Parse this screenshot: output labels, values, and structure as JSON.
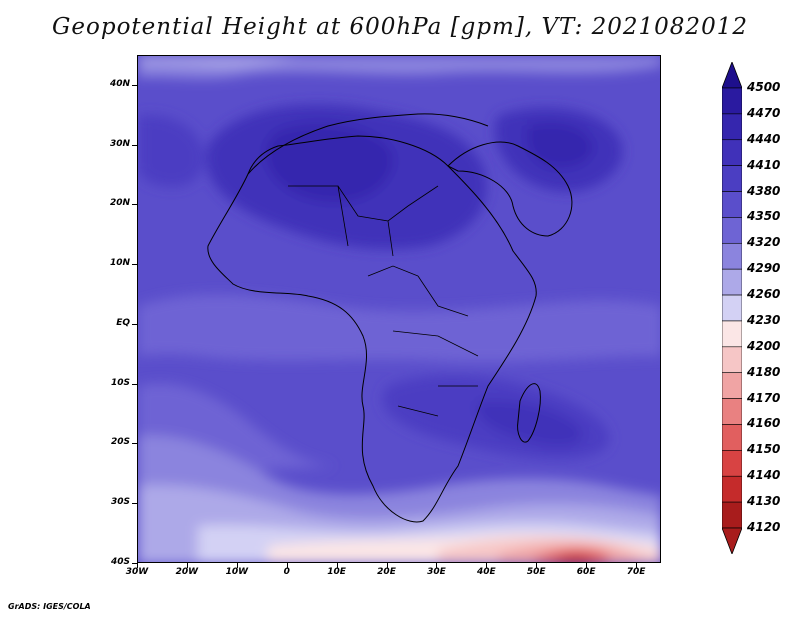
{
  "title": "Geopotential Height at 600hPa [gpm], VT: 2021082012",
  "footer": "GrADS: IGES/COLA",
  "map": {
    "lon_range": [
      -30,
      75
    ],
    "lat_range": [
      -40,
      45
    ],
    "y_ticks": [
      {
        "lat": 40,
        "label": "40N"
      },
      {
        "lat": 30,
        "label": "30N"
      },
      {
        "lat": 20,
        "label": "20N"
      },
      {
        "lat": 10,
        "label": "10N"
      },
      {
        "lat": 0,
        "label": "EQ"
      },
      {
        "lat": -10,
        "label": "10S"
      },
      {
        "lat": -20,
        "label": "20S"
      },
      {
        "lat": -30,
        "label": "30S"
      },
      {
        "lat": -40,
        "label": "40S"
      }
    ],
    "x_ticks": [
      {
        "lon": -30,
        "label": "30W"
      },
      {
        "lon": -20,
        "label": "20W"
      },
      {
        "lon": -10,
        "label": "10W"
      },
      {
        "lon": 0,
        "label": "0"
      },
      {
        "lon": 10,
        "label": "10E"
      },
      {
        "lon": 20,
        "label": "20E"
      },
      {
        "lon": 30,
        "label": "30E"
      },
      {
        "lon": 40,
        "label": "40E"
      },
      {
        "lon": 50,
        "label": "50E"
      },
      {
        "lon": 60,
        "label": "60E"
      },
      {
        "lon": 70,
        "label": "70E"
      }
    ]
  },
  "colorbar": {
    "levels": [
      {
        "value": "4500",
        "color": "#1e0f8c"
      },
      {
        "value": "4470",
        "color": "#2a1aa0"
      },
      {
        "value": "4440",
        "color": "#3526ae"
      },
      {
        "value": "4410",
        "color": "#4031b9"
      },
      {
        "value": "4380",
        "color": "#4b3ec2"
      },
      {
        "value": "4350",
        "color": "#5a4ecb"
      },
      {
        "value": "4320",
        "color": "#6e64d4"
      },
      {
        "value": "4290",
        "color": "#8b84de"
      },
      {
        "value": "4260",
        "color": "#ada9e8"
      },
      {
        "value": "4230",
        "color": "#d3d1f4"
      },
      {
        "value": "4200",
        "color": "#fbe6e6"
      },
      {
        "value": "4180",
        "color": "#f6c6c6"
      },
      {
        "value": "4170",
        "color": "#f0a4a4"
      },
      {
        "value": "4160",
        "color": "#e98181"
      },
      {
        "value": "4150",
        "color": "#e15f5f"
      },
      {
        "value": "4140",
        "color": "#d84343"
      },
      {
        "value": "4130",
        "color": "#c52b2b"
      },
      {
        "value": "4120",
        "color": "#a81c1c"
      }
    ]
  }
}
